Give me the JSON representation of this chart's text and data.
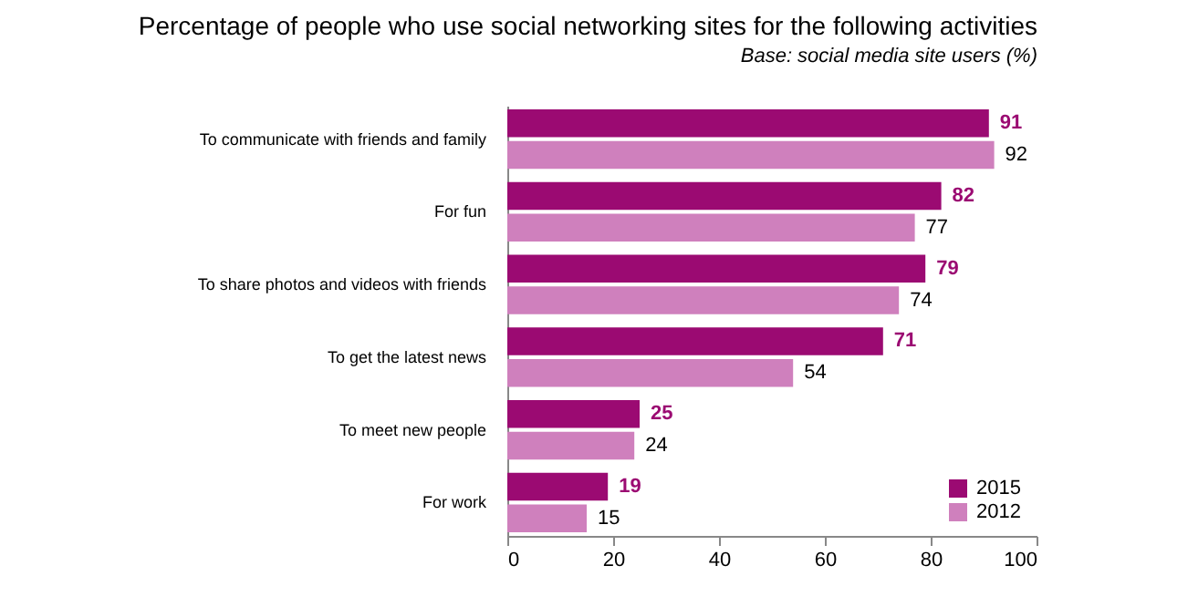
{
  "chart_data": {
    "type": "bar",
    "orientation": "horizontal",
    "title": "Percentage of people who use social networking sites for the following activities",
    "subtitle": "Base: social media site users (%)",
    "categories": [
      "To communicate with friends and family",
      "For fun",
      "To share photos and videos with friends",
      "To get the latest news",
      "To meet new people",
      "For work"
    ],
    "series": [
      {
        "name": "2015",
        "color": "#9b0a72",
        "values": [
          91,
          82,
          79,
          71,
          25,
          19
        ]
      },
      {
        "name": "2012",
        "color": "#cf80bd",
        "values": [
          92,
          77,
          74,
          54,
          24,
          15
        ]
      }
    ],
    "xlim": [
      0,
      100
    ],
    "xticks": [
      0,
      20,
      40,
      60,
      80,
      100
    ],
    "grid": false,
    "legend": "bottom right",
    "data_labels": true
  }
}
